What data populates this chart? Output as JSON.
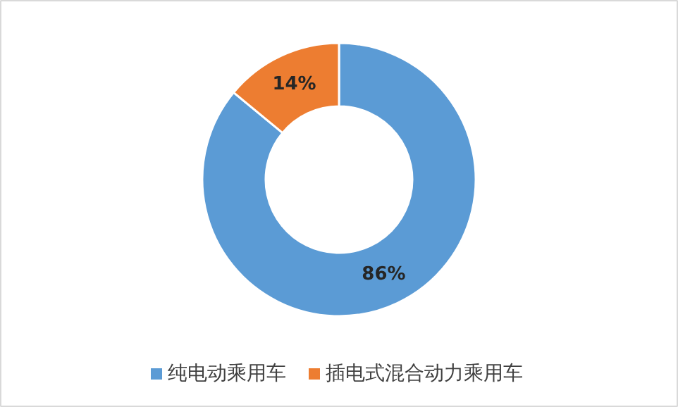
{
  "chart_data": {
    "type": "donut",
    "categories": [
      "纯电动乘用车",
      "插电式混合动力乘用车"
    ],
    "values": [
      86,
      14
    ],
    "colors": [
      "#5b9bd5",
      "#ed7d31"
    ],
    "value_labels": [
      "86%",
      "14%"
    ],
    "legend": "bottom"
  }
}
